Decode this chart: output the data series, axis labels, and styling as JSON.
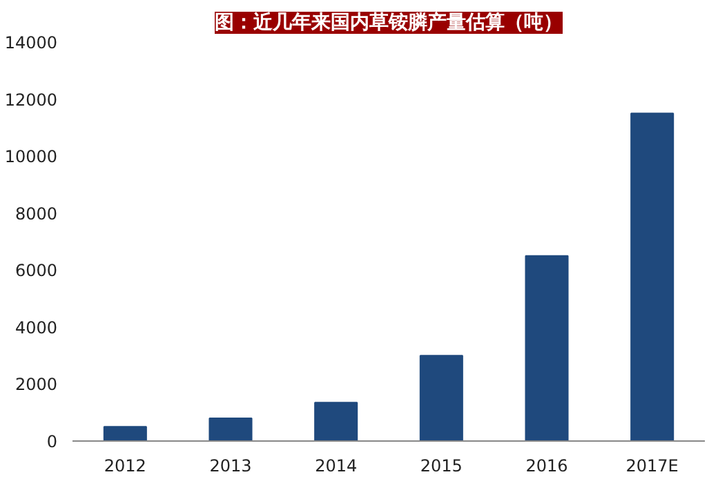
{
  "chart_data": {
    "type": "bar",
    "title": "图：近几年来国内草铵膦产量估算（吨）",
    "categories": [
      "2012",
      "2013",
      "2014",
      "2015",
      "2016",
      "2017E"
    ],
    "values": [
      500,
      800,
      1350,
      3000,
      6500,
      11500
    ],
    "color": "#1f497d",
    "ylim": [
      0,
      14000
    ],
    "yticks": [
      0,
      2000,
      4000,
      6000,
      8000,
      10000,
      12000,
      14000
    ],
    "grid": false
  }
}
